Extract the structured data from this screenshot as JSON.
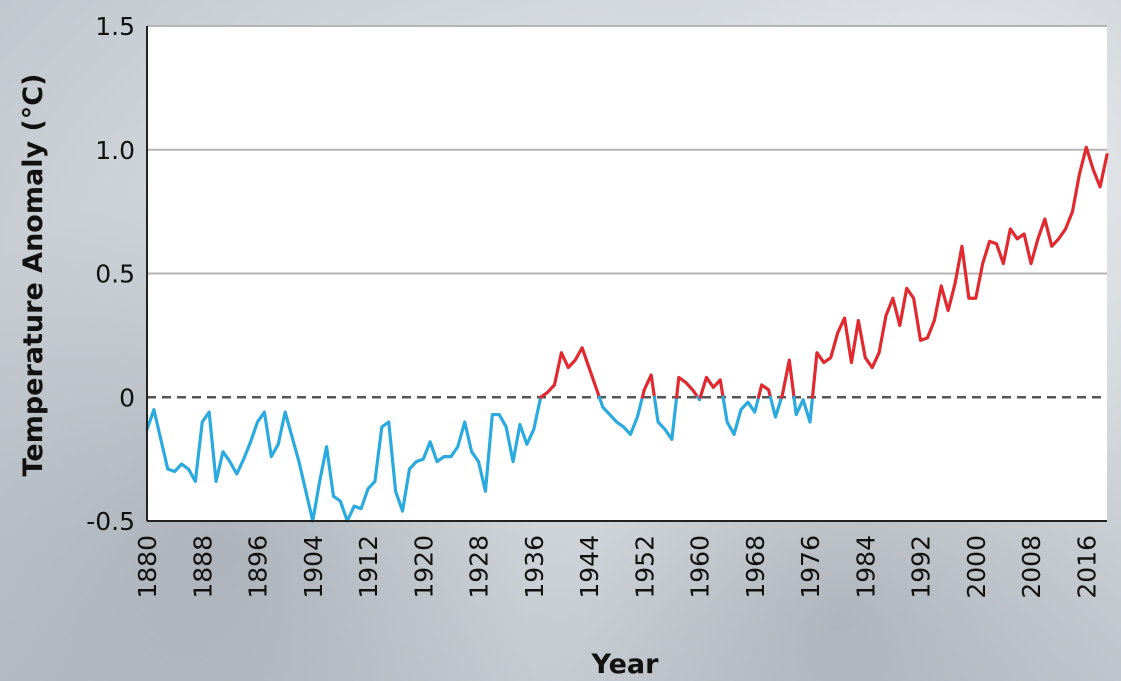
{
  "chart_data": {
    "type": "line",
    "xlabel": "Year",
    "ylabel": "Temperature Anomaly (°C)",
    "x_ticks": [
      "1880",
      "1888",
      "1896",
      "1904",
      "1912",
      "1920",
      "1928",
      "1936",
      "1944",
      "1952",
      "1960",
      "1968",
      "1976",
      "1984",
      "1992",
      "2000",
      "2008",
      "2016"
    ],
    "y_ticks": [
      "1.5",
      "1.0",
      "0.5",
      "0",
      "-0.5"
    ],
    "xlim": [
      1880,
      2019
    ],
    "ylim": [
      -0.5,
      1.5
    ],
    "grid": true,
    "zero_line": "dashed",
    "colors": {
      "below": "#2aaadf",
      "above": "#e02a2f",
      "grid": "#b5b5b5",
      "zero": "#555555",
      "plot_bg": "#ffffff"
    },
    "series": [
      {
        "years": [
          1880,
          1881,
          1882,
          1883,
          1884,
          1885,
          1886,
          1887,
          1888,
          1889,
          1890,
          1891,
          1892,
          1893,
          1894,
          1895,
          1896,
          1897,
          1898,
          1899,
          1900,
          1901,
          1902,
          1903,
          1904,
          1905,
          1906,
          1907,
          1908,
          1909,
          1910,
          1911,
          1912,
          1913,
          1914,
          1915,
          1916,
          1917,
          1918,
          1919,
          1920,
          1921,
          1922,
          1923,
          1924,
          1925,
          1926,
          1927,
          1928,
          1929,
          1930,
          1931,
          1932,
          1933,
          1934,
          1935,
          1936,
          1937,
          1938,
          1939,
          1940,
          1941,
          1942,
          1943,
          1944,
          1945,
          1946,
          1947,
          1948,
          1949,
          1950,
          1951,
          1952,
          1953,
          1954,
          1955,
          1956,
          1957,
          1958,
          1959,
          1960,
          1961,
          1962,
          1963,
          1964,
          1965,
          1966,
          1967,
          1968,
          1969,
          1970,
          1971,
          1972,
          1973,
          1974,
          1975,
          1976,
          1977,
          1978,
          1979,
          1980,
          1981,
          1982,
          1983,
          1984,
          1985,
          1986,
          1987,
          1988,
          1989,
          1990,
          1991,
          1992,
          1993,
          1994,
          1995,
          1996,
          1997,
          1998,
          1999,
          2000,
          2001,
          2002,
          2003,
          2004,
          2005,
          2006,
          2007,
          2008,
          2009,
          2010,
          2011,
          2012,
          2013,
          2014,
          2015,
          2016,
          2017,
          2018,
          2019
        ],
        "values": [
          -0.13,
          -0.05,
          -0.17,
          -0.29,
          -0.3,
          -0.27,
          -0.29,
          -0.34,
          -0.1,
          -0.06,
          -0.34,
          -0.22,
          -0.26,
          -0.31,
          -0.25,
          -0.18,
          -0.1,
          -0.06,
          -0.24,
          -0.19,
          -0.06,
          -0.16,
          -0.26,
          -0.38,
          -0.5,
          -0.34,
          -0.2,
          -0.4,
          -0.42,
          -0.5,
          -0.44,
          -0.45,
          -0.37,
          -0.34,
          -0.12,
          -0.1,
          -0.38,
          -0.46,
          -0.29,
          -0.26,
          -0.25,
          -0.18,
          -0.26,
          -0.24,
          -0.24,
          -0.2,
          -0.1,
          -0.22,
          -0.26,
          -0.38,
          -0.07,
          -0.07,
          -0.12,
          -0.26,
          -0.11,
          -0.19,
          -0.13,
          0.0,
          0.02,
          0.05,
          0.18,
          0.12,
          0.15,
          0.2,
          0.12,
          0.04,
          -0.04,
          -0.07,
          -0.1,
          -0.12,
          -0.15,
          -0.08,
          0.03,
          0.09,
          -0.1,
          -0.13,
          -0.17,
          0.08,
          0.06,
          0.03,
          -0.01,
          0.08,
          0.04,
          0.07,
          -0.1,
          -0.15,
          -0.05,
          -0.02,
          -0.06,
          0.05,
          0.03,
          -0.08,
          0.01,
          0.15,
          -0.07,
          -0.01,
          -0.1,
          0.18,
          0.14,
          0.16,
          0.26,
          0.32,
          0.14,
          0.31,
          0.16,
          0.12,
          0.18,
          0.33,
          0.4,
          0.29,
          0.44,
          0.4,
          0.23,
          0.24,
          0.31,
          0.45,
          0.35,
          0.46,
          0.61,
          0.4,
          0.4,
          0.54,
          0.63,
          0.62,
          0.54,
          0.68,
          0.64,
          0.66,
          0.54,
          0.64,
          0.72,
          0.61,
          0.64,
          0.68,
          0.75,
          0.9,
          1.01,
          0.92,
          0.85,
          0.98
        ]
      }
    ]
  }
}
